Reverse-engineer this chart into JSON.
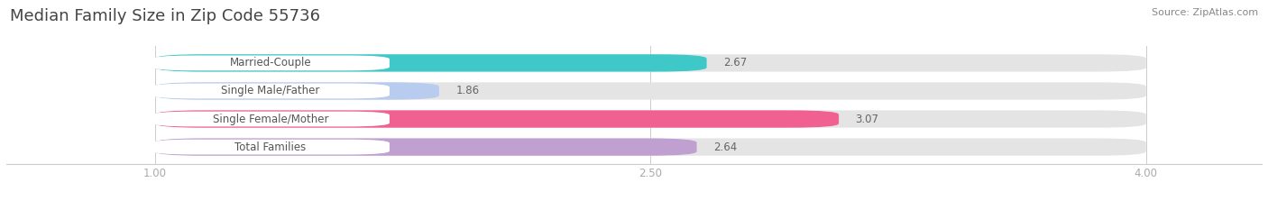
{
  "title": "Median Family Size in Zip Code 55736",
  "source": "Source: ZipAtlas.com",
  "categories": [
    "Married-Couple",
    "Single Male/Father",
    "Single Female/Mother",
    "Total Families"
  ],
  "values": [
    2.67,
    1.86,
    3.07,
    2.64
  ],
  "bar_colors": [
    "#3ec8c8",
    "#b8ccf0",
    "#f06090",
    "#c0a0d0"
  ],
  "background_color": "#ffffff",
  "bar_bg_color": "#e8e8e8",
  "xlim_data": [
    1.0,
    4.0
  ],
  "xlim_plot": [
    0.55,
    4.35
  ],
  "xticks": [
    1.0,
    2.5,
    4.0
  ],
  "label_fontsize": 8.5,
  "value_fontsize": 8.5,
  "title_fontsize": 13
}
